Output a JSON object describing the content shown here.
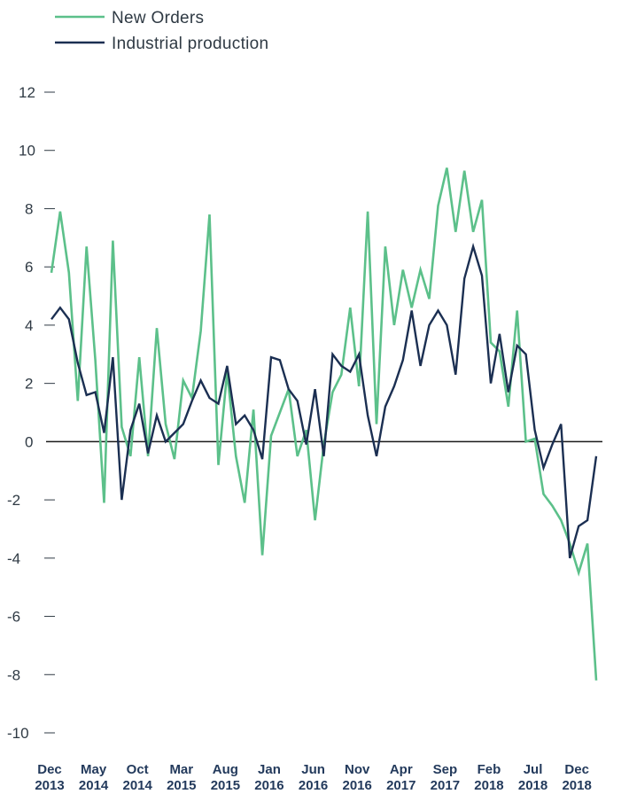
{
  "chart_data": {
    "type": "line",
    "colors": {
      "new_orders": "#5cc08a",
      "industrial_production": "#1b2f52",
      "zero_line": "#1a1a1a"
    },
    "legend": [
      "New Orders",
      "Industrial production"
    ],
    "ylim": [
      -10,
      12
    ],
    "yticks": [
      12,
      10,
      8,
      6,
      4,
      2,
      0,
      -2,
      -4,
      -6,
      -8,
      -10
    ],
    "xtick_labels": [
      {
        "month": "Dec",
        "year": "2013"
      },
      {
        "month": "May",
        "year": "2014"
      },
      {
        "month": "Oct",
        "year": "2014"
      },
      {
        "month": "Mar",
        "year": "2015"
      },
      {
        "month": "Aug",
        "year": "2015"
      },
      {
        "month": "Jan",
        "year": "2016"
      },
      {
        "month": "Jun",
        "year": "2016"
      },
      {
        "month": "Nov",
        "year": "2016"
      },
      {
        "month": "Apr",
        "year": "2017"
      },
      {
        "month": "Sep",
        "year": "2017"
      },
      {
        "month": "Feb",
        "year": "2018"
      },
      {
        "month": "Jul",
        "year": "2018"
      },
      {
        "month": "Dec",
        "year": "2018"
      }
    ],
    "x_start": "Dec 2013",
    "x_end": "Dec 2018",
    "series": [
      {
        "name": "New Orders",
        "values": [
          5.8,
          7.9,
          5.8,
          1.4,
          6.7,
          2.8,
          -2.1,
          6.9,
          0.5,
          -0.5,
          2.9,
          -0.5,
          3.9,
          0.6,
          -0.6,
          2.1,
          1.5,
          3.8,
          7.8,
          -0.8,
          2.4,
          -0.5,
          -2.1,
          1.1,
          -3.9,
          0.2,
          1.0,
          1.8,
          -0.5,
          0.4,
          -2.7,
          -0.1,
          1.7,
          2.3,
          4.6,
          1.9,
          7.9,
          0.6,
          6.7,
          4.0,
          5.9,
          4.6,
          5.9,
          4.9,
          8.1,
          9.4,
          7.2,
          9.3,
          7.2,
          8.3,
          3.4,
          3.1,
          1.2,
          4.5,
          0.0,
          0.1,
          -1.8,
          -2.2,
          -2.7,
          -3.5,
          -4.5,
          -3.5,
          -8.2
        ]
      },
      {
        "name": "Industrial production",
        "values": [
          4.2,
          4.6,
          4.2,
          2.7,
          1.6,
          1.7,
          0.3,
          2.9,
          -2.0,
          0.4,
          1.3,
          -0.4,
          0.9,
          0.0,
          0.3,
          0.6,
          1.4,
          2.1,
          1.5,
          1.3,
          2.6,
          0.6,
          0.9,
          0.4,
          -0.6,
          2.9,
          2.8,
          1.8,
          1.4,
          -0.1,
          1.8,
          -0.5,
          3.0,
          2.6,
          2.4,
          3.0,
          0.9,
          -0.5,
          1.2,
          1.9,
          2.8,
          4.5,
          2.6,
          4.0,
          4.5,
          4.0,
          2.3,
          5.6,
          6.7,
          5.7,
          2.0,
          3.7,
          1.7,
          3.3,
          3.0,
          0.4,
          -0.9,
          -0.1,
          0.6,
          -4.0,
          -2.9,
          -2.7,
          -0.5
        ]
      }
    ]
  }
}
